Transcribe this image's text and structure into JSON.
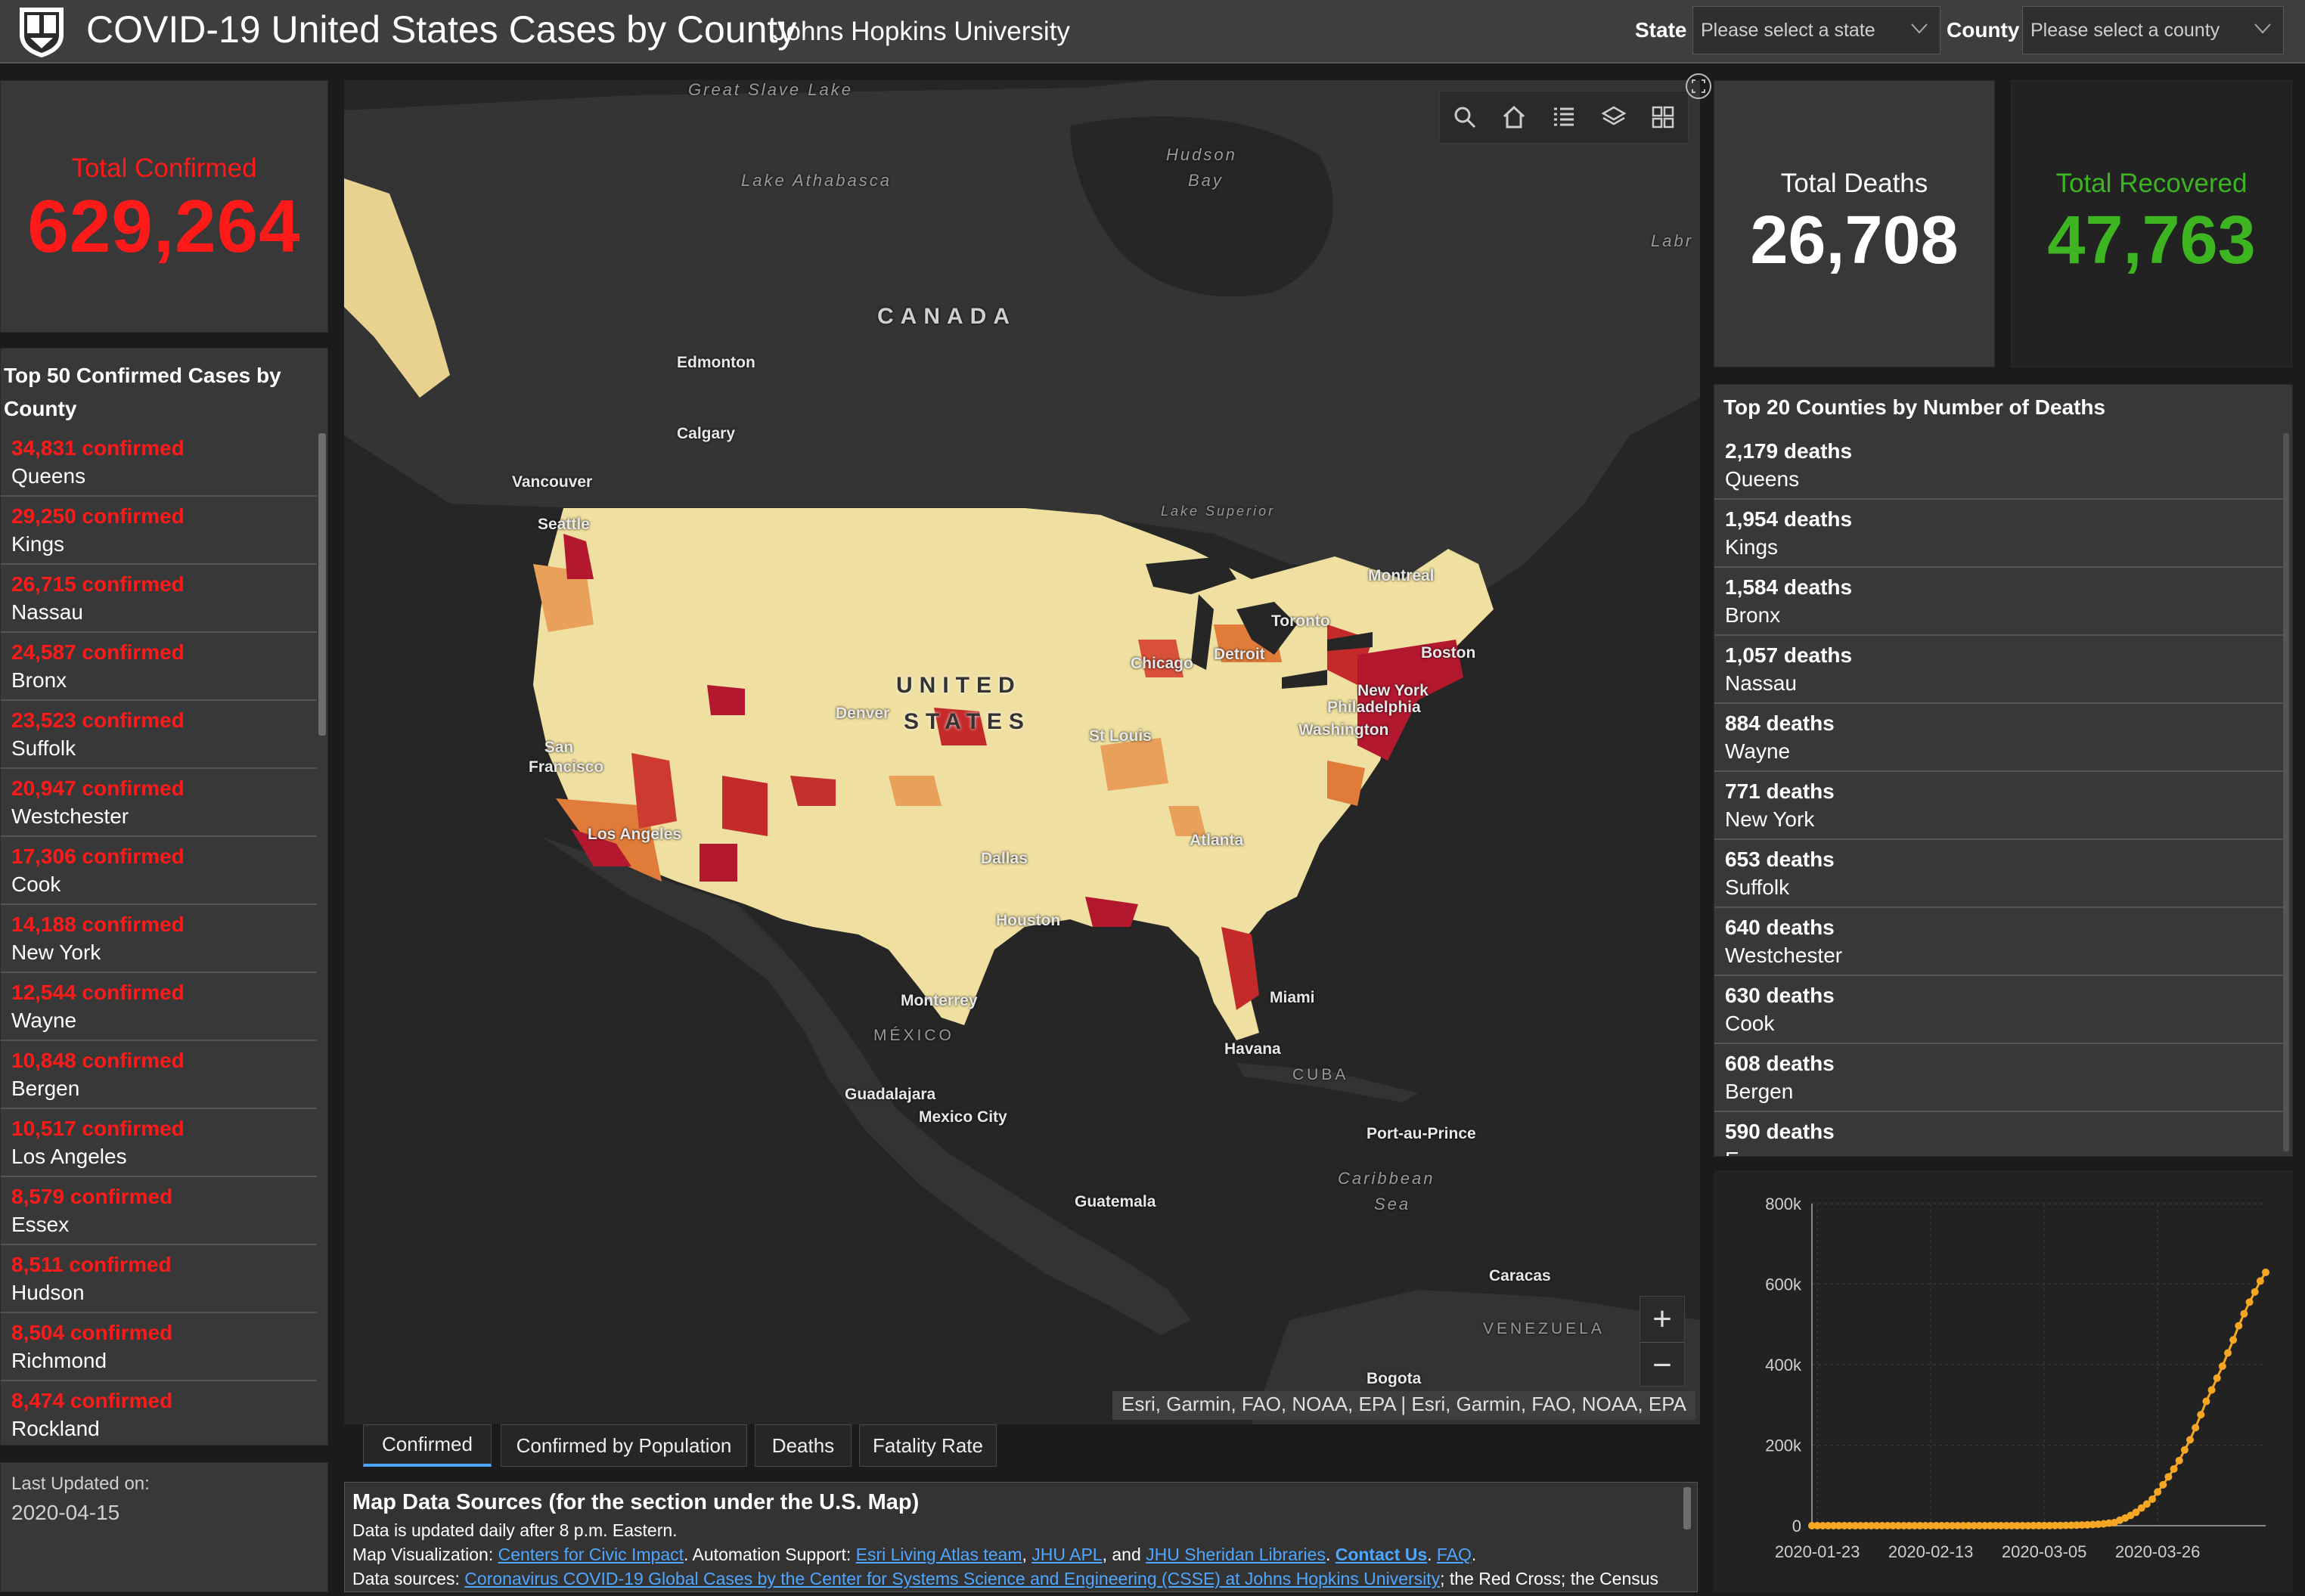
{
  "header": {
    "title": "COVID-19 United States Cases by County",
    "subtitle": "Johns Hopkins University",
    "state_label": "State",
    "state_placeholder": "Please select a state",
    "county_label": "County",
    "county_placeholder": "Please select a county"
  },
  "total_confirmed": {
    "label": "Total Confirmed",
    "value": "629,264",
    "color": "#ff1a1a"
  },
  "top_confirmed": {
    "title": "Top 50 Confirmed Cases by County",
    "items": [
      {
        "value": "34,831 confirmed",
        "name": "Queens"
      },
      {
        "value": "29,250 confirmed",
        "name": "Kings"
      },
      {
        "value": "26,715 confirmed",
        "name": "Nassau"
      },
      {
        "value": "24,587 confirmed",
        "name": "Bronx"
      },
      {
        "value": "23,523 confirmed",
        "name": "Suffolk"
      },
      {
        "value": "20,947 confirmed",
        "name": "Westchester"
      },
      {
        "value": "17,306 confirmed",
        "name": "Cook"
      },
      {
        "value": "14,188 confirmed",
        "name": "New York"
      },
      {
        "value": "12,544 confirmed",
        "name": "Wayne"
      },
      {
        "value": "10,848 confirmed",
        "name": "Bergen"
      },
      {
        "value": "10,517 confirmed",
        "name": "Los Angeles"
      },
      {
        "value": "8,579 confirmed",
        "name": "Essex"
      },
      {
        "value": "8,511 confirmed",
        "name": "Hudson"
      },
      {
        "value": "8,504 confirmed",
        "name": "Richmond"
      },
      {
        "value": "8,474 confirmed",
        "name": "Rockland"
      }
    ]
  },
  "last_updated": {
    "label": "Last Updated on:",
    "value": "2020-04-15"
  },
  "map": {
    "labels": {
      "great_slave": "Great Slave Lake",
      "lake_athabasca": "Lake Athabasca",
      "hudson": "Hudson",
      "bay": "Bay",
      "labr": "Labr",
      "canada": "CANADA",
      "edmonton": "Edmonton",
      "calgary": "Calgary",
      "vancouver": "Vancouver",
      "seattle": "Seattle",
      "lake_superior": "Lake Superior",
      "montreal": "Montreal",
      "toronto": "Toronto",
      "detroit": "Detroit",
      "chicago": "Chicago",
      "boston": "Boston",
      "new_york": "New York",
      "philadelphia": "Philadelphia",
      "washington": "Washington",
      "united": "UNITED",
      "states": "STATES",
      "denver": "Denver",
      "st_louis": "St Louis",
      "san_francisco": "San Francisco",
      "los_angeles": "Los Angeles",
      "dallas": "Dallas",
      "atlanta": "Atlanta",
      "houston": "Houston",
      "monterrey": "Monterrey",
      "mexico": "MÉXICO",
      "miami": "Miami",
      "havana": "Havana",
      "cuba": "CUBA",
      "guadalajara": "Guadalajara",
      "mexico_city": "Mexico City",
      "port_au_prince": "Port-au-Prince",
      "caribbean": "Caribbean",
      "sea": "Sea",
      "guatemala": "Guatemala",
      "caracas": "Caracas",
      "venezuela": "VENEZUELA",
      "bogota": "Bogota"
    },
    "toolbar_icons": [
      "search-icon",
      "home-icon",
      "legend-list-icon",
      "layers-icon",
      "qr-basemap-icon"
    ],
    "zoom_in": "+",
    "zoom_out": "−",
    "attribution": "Esri, Garmin, FAO, NOAA, EPA | Esri, Garmin, FAO, NOAA, EPA"
  },
  "tabs": [
    {
      "label": "Confirmed",
      "active": true
    },
    {
      "label": "Confirmed by Population",
      "active": false
    },
    {
      "label": "Deaths",
      "active": false
    },
    {
      "label": "Fatality Rate",
      "active": false
    }
  ],
  "sources": {
    "title": "Map Data Sources (for the section under the U.S. Map)",
    "line1": "Data is updated daily after 8 p.m. Eastern.",
    "line2_prefix": "Map Visualization: ",
    "line2_link1": "Centers for Civic Impact",
    "line2_mid": ". Automation Support: ",
    "line2_link2": "Esri Living Atlas team",
    "line2_sep1": ", ",
    "line2_link3": "JHU APL",
    "line2_sep2": ", and ",
    "line2_link4": "JHU Sheridan Libraries",
    "line2_sep3": ". ",
    "line2_link5": "Contact Us",
    "line2_sep4": ". ",
    "line2_link6": "FAQ",
    "line2_end": ".",
    "line3_prefix": "Data sources: ",
    "line3_link": "Coronavirus COVID-19 Global Cases by the Center for Systems Science and Engineering (CSSE) at Johns Hopkins University",
    "line3_suffix": "; the Red Cross; the Census"
  },
  "total_deaths": {
    "label": "Total Deaths",
    "value": "26,708"
  },
  "total_recovered": {
    "label": "Total Recovered",
    "value": "47,763",
    "color": "#3cb521"
  },
  "top_deaths": {
    "title": "Top 20 Counties by Number of Deaths",
    "items": [
      {
        "value": "2,179 deaths",
        "name": "Queens"
      },
      {
        "value": "1,954 deaths",
        "name": "Kings"
      },
      {
        "value": "1,584 deaths",
        "name": "Bronx"
      },
      {
        "value": "1,057 deaths",
        "name": "Nassau"
      },
      {
        "value": "884 deaths",
        "name": "Wayne"
      },
      {
        "value": "771 deaths",
        "name": "New York"
      },
      {
        "value": "653 deaths",
        "name": "Suffolk"
      },
      {
        "value": "640 deaths",
        "name": "Westchester"
      },
      {
        "value": "630 deaths",
        "name": "Cook"
      },
      {
        "value": "608 deaths",
        "name": "Bergen"
      },
      {
        "value": "590 deaths",
        "name": "E"
      }
    ]
  },
  "chart_data": {
    "type": "line",
    "title": "",
    "xlabel": "",
    "ylabel": "",
    "x_ticks": [
      "2020-01-23",
      "2020-02-13",
      "2020-03-05",
      "2020-03-26"
    ],
    "y_ticks": [
      "0",
      "200k",
      "400k",
      "600k",
      "800k"
    ],
    "ylim": [
      0,
      800000
    ],
    "xlim": [
      "2020-01-22",
      "2020-04-15"
    ],
    "grid": true,
    "color": "#f5a623",
    "series": [
      {
        "x": [
          "2020-01-22",
          "2020-01-23",
          "2020-01-24",
          "2020-01-25",
          "2020-01-26",
          "2020-01-27",
          "2020-01-28",
          "2020-01-29",
          "2020-01-30",
          "2020-01-31",
          "2020-02-01",
          "2020-02-02",
          "2020-02-03",
          "2020-02-04",
          "2020-02-05",
          "2020-02-06",
          "2020-02-07",
          "2020-02-08",
          "2020-02-09",
          "2020-02-10",
          "2020-02-11",
          "2020-02-12",
          "2020-02-13",
          "2020-02-14",
          "2020-02-15",
          "2020-02-16",
          "2020-02-17",
          "2020-02-18",
          "2020-02-19",
          "2020-02-20",
          "2020-02-21",
          "2020-02-22",
          "2020-02-23",
          "2020-02-24",
          "2020-02-25",
          "2020-02-26",
          "2020-02-27",
          "2020-02-28",
          "2020-02-29",
          "2020-03-01",
          "2020-03-02",
          "2020-03-03",
          "2020-03-04",
          "2020-03-05",
          "2020-03-06",
          "2020-03-07",
          "2020-03-08",
          "2020-03-09",
          "2020-03-10",
          "2020-03-11",
          "2020-03-12",
          "2020-03-13",
          "2020-03-14",
          "2020-03-15",
          "2020-03-16",
          "2020-03-17",
          "2020-03-18",
          "2020-03-19",
          "2020-03-20",
          "2020-03-21",
          "2020-03-22",
          "2020-03-23",
          "2020-03-24",
          "2020-03-25",
          "2020-03-26",
          "2020-03-27",
          "2020-03-28",
          "2020-03-29",
          "2020-03-30",
          "2020-03-31",
          "2020-04-01",
          "2020-04-02",
          "2020-04-03",
          "2020-04-04",
          "2020-04-05",
          "2020-04-06",
          "2020-04-07",
          "2020-04-08",
          "2020-04-09",
          "2020-04-10",
          "2020-04-11",
          "2020-04-12",
          "2020-04-13",
          "2020-04-14",
          "2020-04-15"
        ],
        "y": [
          1,
          1,
          2,
          2,
          5,
          5,
          5,
          5,
          5,
          6,
          8,
          8,
          11,
          11,
          11,
          12,
          12,
          12,
          12,
          12,
          13,
          13,
          15,
          15,
          15,
          15,
          15,
          15,
          15,
          15,
          35,
          35,
          35,
          53,
          57,
          60,
          60,
          62,
          70,
          76,
          101,
          122,
          153,
          221,
          319,
          435,
          541,
          704,
          994,
          1301,
          1630,
          2183,
          2770,
          3613,
          4596,
          6344,
          7783,
          13677,
          19100,
          25489,
          33276,
          43847,
          53740,
          65778,
          83836,
          101657,
          121465,
          140909,
          161831,
          188172,
          213372,
          243453,
          275586,
          308850,
          337072,
          366667,
          396223,
          429052,
          461437,
          496535,
          526396,
          555313,
          580619,
          607670,
          629264
        ]
      }
    ]
  }
}
